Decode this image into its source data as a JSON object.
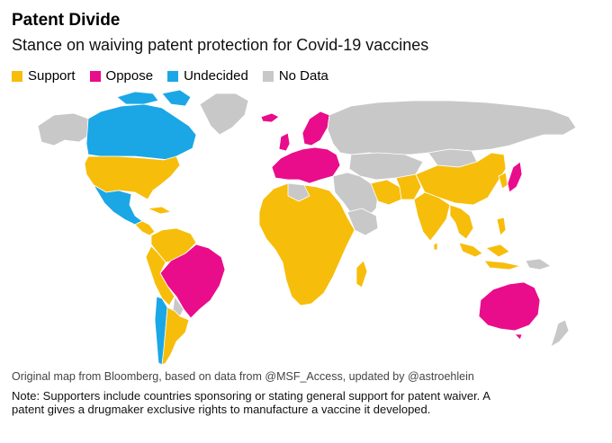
{
  "title": "Patent Divide",
  "subtitle": "Stance on waiving patent protection for Covid-19 vaccines",
  "legend": [
    {
      "label": "Support",
      "color": "#f7bd0b"
    },
    {
      "label": "Oppose",
      "color": "#e90c8b"
    },
    {
      "label": "Undecided",
      "color": "#1ba7e6"
    },
    {
      "label": "No Data",
      "color": "#c8c8c8"
    }
  ],
  "colors": {
    "support": "#f7bd0b",
    "oppose": "#e90c8b",
    "undecided": "#1ba7e6",
    "nodata": "#c8c8c8",
    "border": "#ffffff"
  },
  "regions": {
    "support": [
      "United States",
      "Mexico",
      "Central America",
      "Caribbean",
      "Venezuela",
      "Colombia",
      "Peru",
      "Bolivia",
      "Argentina",
      "Africa",
      "India",
      "China",
      "Southeast Asia",
      "Indonesia",
      "Iran",
      "Pakistan"
    ],
    "oppose": [
      "Brazil",
      "European Union",
      "United Kingdom",
      "Switzerland",
      "Norway",
      "Japan",
      "Australia"
    ],
    "undecided": [
      "Canada",
      "Chile",
      "Mexico (north)"
    ],
    "nodata": [
      "Greenland",
      "Russia",
      "Middle East",
      "Central Asia",
      "Mongolia",
      "Alaska",
      "Papua New Guinea",
      "New Zealand"
    ]
  },
  "source": "Original map from Bloomberg, based on data from @MSF_Access, updated by @astroehlein",
  "note": "Note: Supporters include countries sponsoring or stating general support for patent waiver. A patent gives a drugmaker exclusive rights to manufacture a vaccine it developed."
}
